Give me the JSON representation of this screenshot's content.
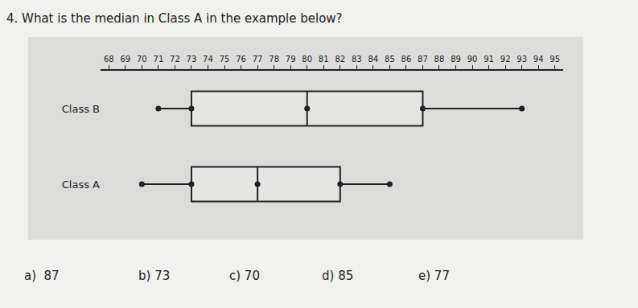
{
  "question": "4.  What is the median in Class A in the example below?",
  "chart_data": {
    "type": "box",
    "orientation": "horizontal",
    "categories": [
      "Class B",
      "Class A"
    ],
    "series": [
      {
        "name": "Class B",
        "min": 71,
        "q1": 73,
        "median": 80,
        "q3": 87,
        "max": 93,
        "color": "#222222"
      },
      {
        "name": "Class A",
        "min": 70,
        "q1": 73,
        "median": 77,
        "q3": 82,
        "max": 85,
        "color": "#222222"
      }
    ],
    "xlim": [
      67.5,
      95.5
    ],
    "xticks": [
      68,
      69,
      70,
      71,
      72,
      73,
      74,
      75,
      76,
      77,
      78,
      79,
      80,
      81,
      82,
      83,
      84,
      85,
      86,
      87,
      88,
      89,
      90,
      91,
      92,
      93,
      94,
      95
    ],
    "marker": "circle",
    "grid": false
  },
  "choices": [
    "a)  87",
    "b) 73",
    "c) 70",
    "d) 85",
    "e) 77"
  ]
}
